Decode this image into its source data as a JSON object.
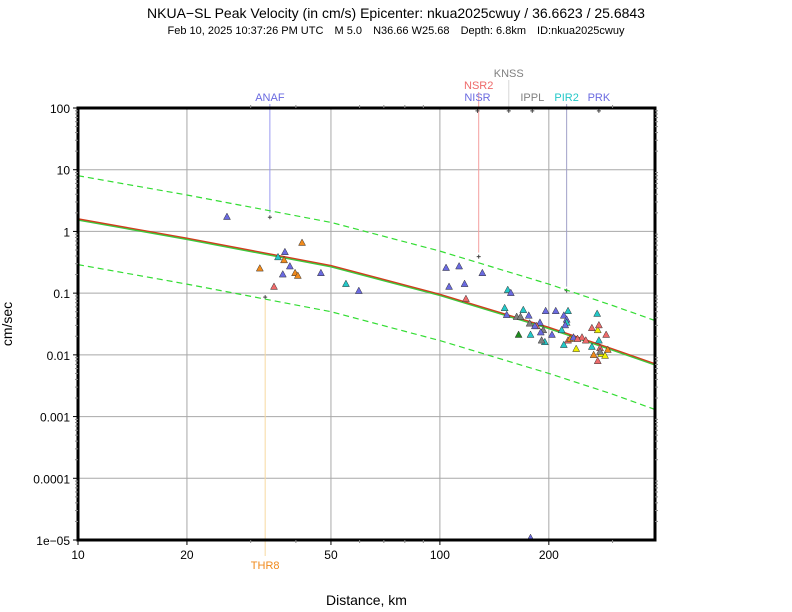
{
  "header": {
    "title": "NKUA−SL Peak Velocity (in cm/s) Epicenter: nkua2025cwuy / 36.6623 / 25.6843",
    "subtitle_parts": [
      "Feb 10, 2025 10:37:26 PM UTC",
      "M 5.0",
      "N36.66 W25.68",
      "Depth: 6.8km",
      "ID:nkua2025cwuy"
    ]
  },
  "chart_data": {
    "type": "scatter",
    "title": "NKUA−SL Peak Velocity (in cm/s) Epicenter: nkua2025cwuy / 36.6623 / 25.6843",
    "xlabel": "Distance, km",
    "ylabel": "cm/sec",
    "xscale": "log",
    "yscale": "log",
    "xlim": [
      10,
      393
    ],
    "ylim": [
      1e-05,
      100
    ],
    "grid": true,
    "xticks": [
      {
        "v": 10,
        "label": "10"
      },
      {
        "v": 20,
        "label": "20"
      },
      {
        "v": 50,
        "label": "50"
      },
      {
        "v": 100,
        "label": "100"
      },
      {
        "v": 200,
        "label": "200"
      }
    ],
    "yticks": [
      {
        "v": 100,
        "label": "100"
      },
      {
        "v": 10,
        "label": "10"
      },
      {
        "v": 1,
        "label": "1"
      },
      {
        "v": 0.1,
        "label": "0.1"
      },
      {
        "v": 0.01,
        "label": "0.01"
      },
      {
        "v": 0.001,
        "label": "0.001"
      },
      {
        "v": 0.0001,
        "label": "0.0001"
      },
      {
        "v": 1e-05,
        "label": "1e−05"
      }
    ],
    "colors": {
      "blue": "#6a6ae0",
      "cyan": "#22c8c8",
      "orange": "#f08a1c",
      "red": "#ee6a6a",
      "gray": "#808080",
      "green": "#1e8c1e",
      "yellow": "#f0f000",
      "median_red": "#d23c1e",
      "median_green": "#3cc83c",
      "dashed": "#33dd33"
    },
    "curves": [
      {
        "name": "median",
        "style": "solid",
        "x": [
          10,
          20,
          50,
          100,
          200,
          300,
          393
        ],
        "y": [
          1.6,
          0.78,
          0.28,
          0.096,
          0.028,
          0.0125,
          0.0072
        ]
      },
      {
        "name": "upper",
        "style": "dashed",
        "x": [
          10,
          20,
          50,
          100,
          200,
          300,
          393
        ],
        "y": [
          8.0,
          3.9,
          1.4,
          0.48,
          0.14,
          0.063,
          0.036
        ]
      },
      {
        "name": "lower",
        "style": "dashed",
        "x": [
          10,
          20,
          50,
          100,
          200,
          300,
          393
        ],
        "y": [
          0.29,
          0.14,
          0.05,
          0.017,
          0.005,
          0.0023,
          0.0013
        ]
      }
    ],
    "points": [
      {
        "x": 25.8,
        "y": 1.71,
        "c": "blue"
      },
      {
        "x": 41.6,
        "y": 0.65,
        "c": "orange"
      },
      {
        "x": 37.3,
        "y": 0.46,
        "c": "blue"
      },
      {
        "x": 35.7,
        "y": 0.38,
        "c": "cyan"
      },
      {
        "x": 37.1,
        "y": 0.34,
        "c": "orange"
      },
      {
        "x": 31.8,
        "y": 0.25,
        "c": "orange"
      },
      {
        "x": 38.5,
        "y": 0.27,
        "c": "blue"
      },
      {
        "x": 36.8,
        "y": 0.2,
        "c": "blue"
      },
      {
        "x": 39.8,
        "y": 0.21,
        "c": "orange"
      },
      {
        "x": 40.5,
        "y": 0.19,
        "c": "orange"
      },
      {
        "x": 46.9,
        "y": 0.21,
        "c": "blue"
      },
      {
        "x": 55.0,
        "y": 0.14,
        "c": "cyan"
      },
      {
        "x": 34.8,
        "y": 0.126,
        "c": "red"
      },
      {
        "x": 59.7,
        "y": 0.108,
        "c": "blue"
      },
      {
        "x": 104,
        "y": 0.255,
        "c": "blue"
      },
      {
        "x": 113,
        "y": 0.27,
        "c": "blue"
      },
      {
        "x": 131,
        "y": 0.21,
        "c": "blue"
      },
      {
        "x": 106,
        "y": 0.126,
        "c": "blue"
      },
      {
        "x": 117,
        "y": 0.14,
        "c": "blue"
      },
      {
        "x": 118,
        "y": 0.08,
        "c": "red"
      },
      {
        "x": 154,
        "y": 0.112,
        "c": "cyan"
      },
      {
        "x": 157,
        "y": 0.1,
        "c": "blue"
      },
      {
        "x": 151,
        "y": 0.057,
        "c": "cyan"
      },
      {
        "x": 153,
        "y": 0.044,
        "c": "blue"
      },
      {
        "x": 170,
        "y": 0.053,
        "c": "cyan"
      },
      {
        "x": 176,
        "y": 0.043,
        "c": "blue"
      },
      {
        "x": 196,
        "y": 0.051,
        "c": "blue"
      },
      {
        "x": 163,
        "y": 0.041,
        "c": "gray"
      },
      {
        "x": 167,
        "y": 0.041,
        "c": "gray"
      },
      {
        "x": 209,
        "y": 0.051,
        "c": "blue"
      },
      {
        "x": 226,
        "y": 0.051,
        "c": "cyan"
      },
      {
        "x": 220,
        "y": 0.043,
        "c": "blue"
      },
      {
        "x": 224,
        "y": 0.037,
        "c": "blue"
      },
      {
        "x": 224,
        "y": 0.033,
        "c": "cyan"
      },
      {
        "x": 222,
        "y": 0.03,
        "c": "blue"
      },
      {
        "x": 272,
        "y": 0.046,
        "c": "cyan"
      },
      {
        "x": 177,
        "y": 0.032,
        "c": "gray"
      },
      {
        "x": 189,
        "y": 0.033,
        "c": "blue"
      },
      {
        "x": 193,
        "y": 0.025,
        "c": "gray"
      },
      {
        "x": 185,
        "y": 0.029,
        "c": "red"
      },
      {
        "x": 183,
        "y": 0.029,
        "c": "blue"
      },
      {
        "x": 190,
        "y": 0.023,
        "c": "blue"
      },
      {
        "x": 217,
        "y": 0.025,
        "c": "cyan"
      },
      {
        "x": 165,
        "y": 0.021,
        "c": "green"
      },
      {
        "x": 178,
        "y": 0.021,
        "c": "cyan"
      },
      {
        "x": 204,
        "y": 0.021,
        "c": "blue"
      },
      {
        "x": 195,
        "y": 0.016,
        "c": "cyan"
      },
      {
        "x": 191,
        "y": 0.017,
        "c": "gray"
      },
      {
        "x": 226,
        "y": 0.017,
        "c": "red"
      },
      {
        "x": 220,
        "y": 0.0144,
        "c": "cyan"
      },
      {
        "x": 263,
        "y": 0.027,
        "c": "red"
      },
      {
        "x": 273,
        "y": 0.025,
        "c": "yellow"
      },
      {
        "x": 275,
        "y": 0.03,
        "c": "red"
      },
      {
        "x": 288,
        "y": 0.021,
        "c": "red"
      },
      {
        "x": 247,
        "y": 0.019,
        "c": "red"
      },
      {
        "x": 253,
        "y": 0.017,
        "c": "red"
      },
      {
        "x": 275,
        "y": 0.017,
        "c": "cyan"
      },
      {
        "x": 263,
        "y": 0.0134,
        "c": "cyan"
      },
      {
        "x": 277,
        "y": 0.0128,
        "c": "red"
      },
      {
        "x": 229,
        "y": 0.018,
        "c": "orange"
      },
      {
        "x": 234,
        "y": 0.019,
        "c": "blue"
      },
      {
        "x": 240,
        "y": 0.018,
        "c": "red"
      },
      {
        "x": 266,
        "y": 0.0099,
        "c": "orange"
      },
      {
        "x": 291,
        "y": 0.012,
        "c": "orange"
      },
      {
        "x": 238,
        "y": 0.0124,
        "c": "yellow"
      },
      {
        "x": 279,
        "y": 0.0103,
        "c": "yellow"
      },
      {
        "x": 286,
        "y": 0.0096,
        "c": "yellow"
      },
      {
        "x": 277,
        "y": 0.0112,
        "c": "gray"
      },
      {
        "x": 273,
        "y": 0.0079,
        "c": "red"
      },
      {
        "x": 178,
        "y": 1.07e-05,
        "c": "blue"
      }
    ],
    "stations": [
      {
        "name": "ANAF",
        "x": 33.9,
        "y": 1.7,
        "color": "#6a6ae0",
        "line": "#9a9af0",
        "pos": "top",
        "row": 0
      },
      {
        "name": "THR8",
        "x": 32.9,
        "y": 0.086,
        "color": "#f08a1c",
        "line": "#f8d9a0",
        "pos": "bottom",
        "row": 0
      },
      {
        "name": "NSR2",
        "x": 128,
        "y": 0.39,
        "color": "#ee6a6a",
        "line": "#f4a0a0",
        "pos": "top",
        "row": 1
      },
      {
        "name": "NISR",
        "x": 127,
        "y": 90,
        "color": "#6a6ae0",
        "line": null,
        "pos": "top",
        "row": 0
      },
      {
        "name": "KNSS",
        "x": 155,
        "y": 90,
        "color": "#808080",
        "line": "#d8d8d8",
        "pos": "top",
        "row": 2
      },
      {
        "name": "IPPL",
        "x": 180,
        "y": 90,
        "color": "#808080",
        "line": null,
        "pos": "top",
        "row": 0
      },
      {
        "name": "PIR2",
        "x": 224,
        "y": 0.11,
        "color": "#22c8c8",
        "line": "#a0a0c8",
        "pos": "top",
        "row": 0
      },
      {
        "name": "PRK",
        "x": 275,
        "y": 90,
        "color": "#6a6ae0",
        "line": null,
        "pos": "top",
        "row": 0
      }
    ]
  }
}
